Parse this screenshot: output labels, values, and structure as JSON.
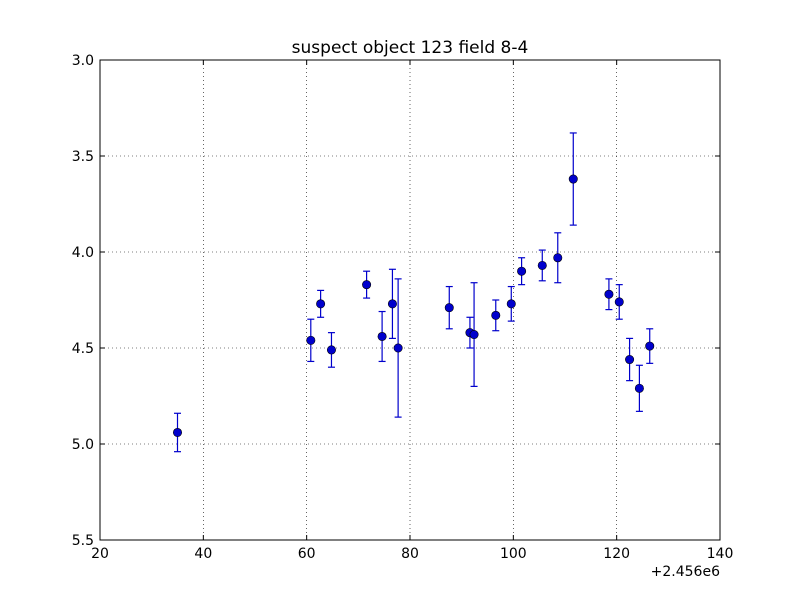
{
  "chart_data": {
    "type": "scatter",
    "title": "suspect object 123 field 8-4",
    "xlabel": "",
    "ylabel": "",
    "x_offset_label": "+2.456e6",
    "xlim": [
      20,
      140
    ],
    "ylim": [
      3.0,
      5.5
    ],
    "y_inverted": true,
    "grid": true,
    "x_ticks": [
      20,
      40,
      60,
      80,
      100,
      120,
      140
    ],
    "x_tick_labels": [
      "20",
      "40",
      "60",
      "80",
      "100",
      "120",
      "140"
    ],
    "y_ticks": [
      3.0,
      3.5,
      4.0,
      4.5,
      5.0,
      5.5
    ],
    "y_tick_labels": [
      "3.0",
      "3.5",
      "4.0",
      "4.5",
      "5.0",
      "5.5"
    ],
    "marker_color": "#0000cc",
    "points": [
      {
        "x": 35.0,
        "y": 4.94,
        "err": 0.1
      },
      {
        "x": 60.8,
        "y": 4.46,
        "err": 0.11
      },
      {
        "x": 62.7,
        "y": 4.27,
        "err": 0.07
      },
      {
        "x": 64.8,
        "y": 4.51,
        "err": 0.09
      },
      {
        "x": 71.6,
        "y": 4.17,
        "err": 0.07
      },
      {
        "x": 74.6,
        "y": 4.44,
        "err": 0.13
      },
      {
        "x": 76.6,
        "y": 4.27,
        "err": 0.18
      },
      {
        "x": 77.7,
        "y": 4.5,
        "err": 0.36
      },
      {
        "x": 87.6,
        "y": 4.29,
        "err": 0.11
      },
      {
        "x": 91.6,
        "y": 4.42,
        "err": 0.08
      },
      {
        "x": 92.4,
        "y": 4.43,
        "err": 0.27
      },
      {
        "x": 96.6,
        "y": 4.33,
        "err": 0.08
      },
      {
        "x": 99.6,
        "y": 4.27,
        "err": 0.09
      },
      {
        "x": 101.6,
        "y": 4.1,
        "err": 0.07
      },
      {
        "x": 105.6,
        "y": 4.07,
        "err": 0.08
      },
      {
        "x": 108.6,
        "y": 4.03,
        "err": 0.13
      },
      {
        "x": 111.6,
        "y": 3.62,
        "err": 0.24
      },
      {
        "x": 118.5,
        "y": 4.22,
        "err": 0.08
      },
      {
        "x": 120.5,
        "y": 4.26,
        "err": 0.09
      },
      {
        "x": 122.5,
        "y": 4.56,
        "err": 0.11
      },
      {
        "x": 124.4,
        "y": 4.71,
        "err": 0.12
      },
      {
        "x": 126.4,
        "y": 4.49,
        "err": 0.09
      }
    ]
  }
}
